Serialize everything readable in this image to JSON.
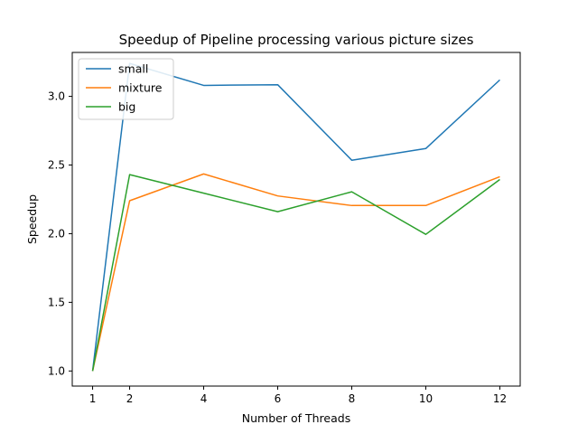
{
  "chart_data": {
    "type": "line",
    "title": "Speedup of Pipeline processing various picture sizes",
    "xlabel": "Number of Threads",
    "ylabel": "Speedup",
    "x": [
      1,
      2,
      4,
      6,
      8,
      10,
      12
    ],
    "xticks": [
      1,
      2,
      4,
      6,
      8,
      10,
      12
    ],
    "xtick_labels": [
      "1",
      "2",
      "4",
      "6",
      "8",
      "10",
      "12"
    ],
    "yticks": [
      1.0,
      1.5,
      2.0,
      2.5,
      3.0
    ],
    "ytick_labels": [
      "1.0",
      "1.5",
      "2.0",
      "2.5",
      "3.0"
    ],
    "xlim": [
      0.45,
      12.55
    ],
    "ylim": [
      0.89,
      3.32
    ],
    "grid": false,
    "legend": "top-left",
    "series": [
      {
        "name": "small",
        "color": "#1f77b4",
        "values": [
          1.0,
          3.24,
          3.08,
          3.085,
          2.535,
          2.62,
          3.12
        ]
      },
      {
        "name": "mixture",
        "color": "#ff7f0e",
        "values": [
          1.0,
          2.24,
          2.435,
          2.275,
          2.205,
          2.205,
          2.415
        ]
      },
      {
        "name": "big",
        "color": "#2ca02c",
        "values": [
          1.0,
          2.43,
          2.295,
          2.16,
          2.305,
          1.995,
          2.395
        ]
      }
    ]
  }
}
